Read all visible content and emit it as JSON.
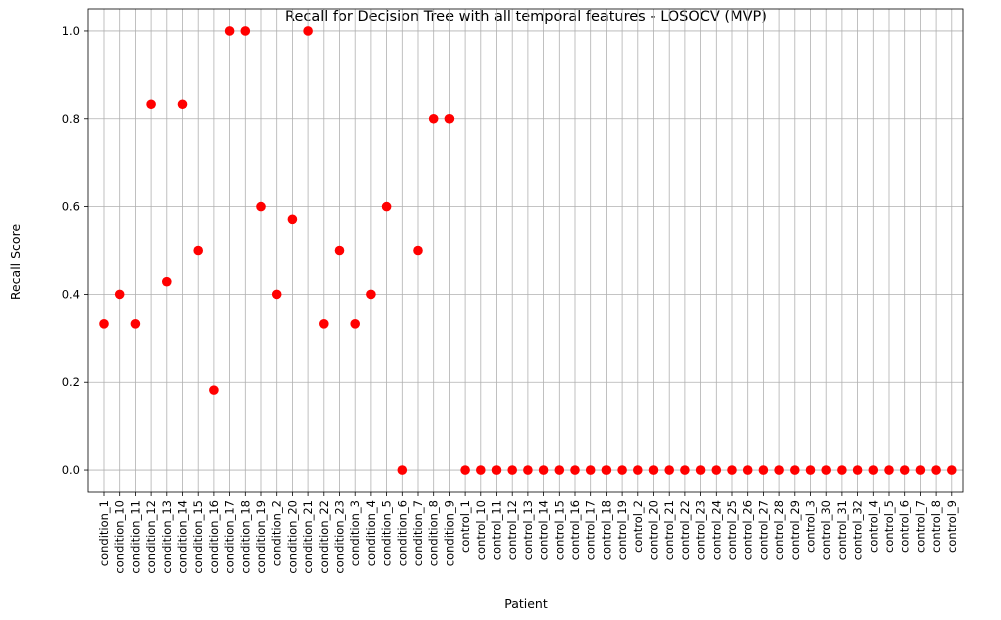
{
  "chart_data": {
    "type": "scatter",
    "title": "Recall for Decision Tree with all temporal features - LOSOCV (MVP)",
    "xlabel": "Patient",
    "ylabel": "Recall Score",
    "ylim": [
      -0.05,
      1.05
    ],
    "yticks": [
      "0.0",
      "0.2",
      "0.4",
      "0.6",
      "0.8",
      "1.0"
    ],
    "grid": true,
    "marker_color": "#ff0000",
    "categories": [
      "condition_1",
      "condition_10",
      "condition_11",
      "condition_12",
      "condition_13",
      "condition_14",
      "condition_15",
      "condition_16",
      "condition_17",
      "condition_18",
      "condition_19",
      "condition_2",
      "condition_20",
      "condition_21",
      "condition_22",
      "condition_23",
      "condition_3",
      "condition_4",
      "condition_5",
      "condition_6",
      "condition_7",
      "condition_8",
      "condition_9",
      "control_1",
      "control_10",
      "control_11",
      "control_12",
      "control_13",
      "control_14",
      "control_15",
      "control_16",
      "control_17",
      "control_18",
      "control_19",
      "control_2",
      "control_20",
      "control_21",
      "control_22",
      "control_23",
      "control_24",
      "control_25",
      "control_26",
      "control_27",
      "control_28",
      "control_29",
      "control_3",
      "control_30",
      "control_31",
      "control_32",
      "control_4",
      "control_5",
      "control_6",
      "control_7",
      "control_8",
      "control_9"
    ],
    "values": [
      0.333,
      0.4,
      0.333,
      0.833,
      0.429,
      0.833,
      0.5,
      0.182,
      1.0,
      1.0,
      0.6,
      0.4,
      0.571,
      1.0,
      0.333,
      0.5,
      0.333,
      0.4,
      0.6,
      0.0,
      0.5,
      0.8,
      0.8,
      0,
      0,
      0,
      0,
      0,
      0,
      0,
      0,
      0,
      0,
      0,
      0,
      0,
      0,
      0,
      0,
      0,
      0,
      0,
      0,
      0,
      0,
      0,
      0,
      0,
      0,
      0,
      0,
      0,
      0,
      0,
      0
    ]
  }
}
